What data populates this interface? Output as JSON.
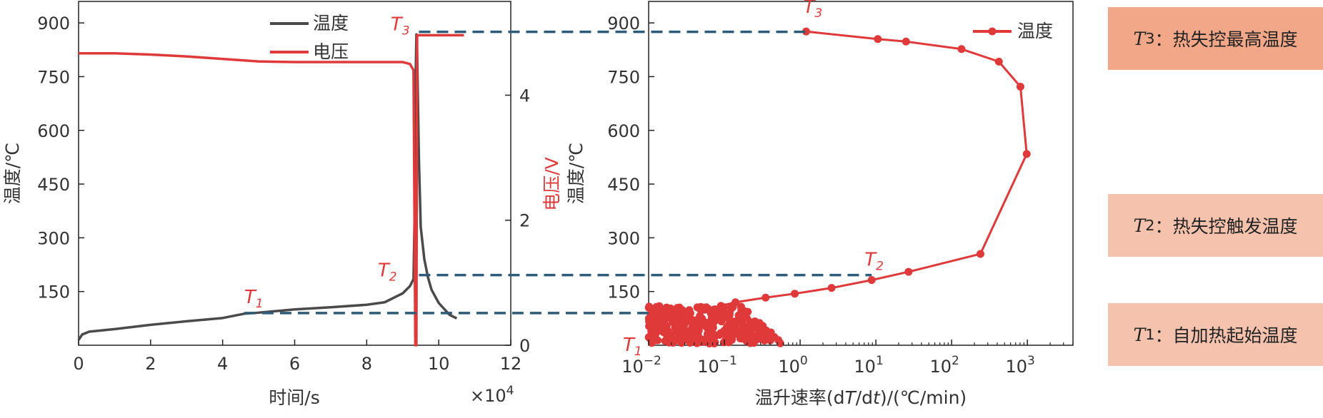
{
  "colors": {
    "temperature": "#4a4a4a",
    "voltage": "#e0393a",
    "rate": "#e0393a",
    "guide": "#2d5b7a",
    "box_t3": "#f2a888",
    "box_t2": "#f4c2ad",
    "box_t1": "#f4c2ad"
  },
  "chart_data": [
    {
      "type": "line",
      "xlabel": "时间/s",
      "x_multiplier": "×10",
      "x_multiplier_exp": "4",
      "ylabel": "温度/℃",
      "y2label": "电压/V",
      "xlim": [
        0,
        12
      ],
      "ylim": [
        0,
        960
      ],
      "y2lim": [
        0,
        5.5
      ],
      "xticks": [
        "0",
        "2",
        "4",
        "6",
        "8",
        "10",
        "12"
      ],
      "yticks": [
        "150",
        "300",
        "450",
        "600",
        "750",
        "900"
      ],
      "y2ticks": [
        "0",
        "2",
        "4"
      ],
      "legend_position": "top-center",
      "series": [
        {
          "name": "温度",
          "axis": "left",
          "x": [
            0,
            0.1,
            0.3,
            1,
            2,
            3,
            4,
            4.6,
            5,
            6,
            7,
            8,
            8.5,
            9,
            9.2,
            9.3,
            9.33,
            9.36,
            9.38,
            9.4,
            9.42,
            9.45,
            9.5,
            9.6,
            9.7,
            9.8,
            10,
            10.3,
            10.5
          ],
          "values": [
            15,
            30,
            38,
            45,
            57,
            67,
            76,
            88,
            91,
            100,
            106,
            113,
            120,
            145,
            165,
            185,
            360,
            750,
            868,
            820,
            700,
            520,
            330,
            240,
            190,
            155,
            118,
            85,
            75
          ]
        },
        {
          "name": "电压",
          "axis": "right",
          "x": [
            0,
            1,
            2,
            3,
            4,
            5,
            6,
            7,
            8,
            9,
            9.2,
            9.3,
            9.35,
            9.38,
            9.4,
            9.45,
            9.8,
            10.7
          ],
          "values": [
            4.67,
            4.67,
            4.65,
            4.62,
            4.58,
            4.54,
            4.53,
            4.53,
            4.53,
            4.53,
            4.5,
            4.4,
            0,
            0,
            4.96,
            4.96,
            4.96,
            4.96
          ]
        }
      ],
      "annotations": [
        {
          "label": "T",
          "sub": "1",
          "x": 4.6,
          "y": 90
        },
        {
          "label": "T",
          "sub": "2",
          "x": 9.3,
          "y": 196
        },
        {
          "label": "T",
          "sub": "3",
          "x": 9.38,
          "y": 875
        }
      ]
    },
    {
      "type": "scatter",
      "xlabel": "温升速率(d T/d t)/(℃/min)",
      "ylabel": "温度/℃",
      "xscale": "log",
      "xlim": [
        0.01,
        4000
      ],
      "ylim": [
        0,
        960
      ],
      "xticks": [
        {
          "base": "10",
          "exp": "−2",
          "value": 0.01
        },
        {
          "base": "10",
          "exp": "−1",
          "value": 0.1
        },
        {
          "base": "10",
          "exp": "0",
          "value": 1
        },
        {
          "base": "10",
          "exp": "1",
          "value": 10
        },
        {
          "base": "10",
          "exp": "2",
          "value": 100
        },
        {
          "base": "10",
          "exp": "3",
          "value": 1000
        }
      ],
      "yticks": [
        "150",
        "300",
        "450",
        "600",
        "750",
        "900"
      ],
      "legend_position": "top-right",
      "series": [
        {
          "name": "温度",
          "x": [
            1.2,
            10.6,
            25,
            135,
            420,
            810,
            980,
            240,
            27,
            8.8,
            2.6,
            0.85,
            0.35,
            0.14,
            0.09
          ],
          "values": [
            876,
            855,
            848,
            827,
            792,
            722,
            534,
            255,
            205,
            182,
            160,
            144,
            133,
            120,
            110
          ]
        }
      ],
      "cluster": {
        "x_range": [
          0.01,
          0.6
        ],
        "y_range": [
          5,
          110
        ]
      },
      "annotations": [
        {
          "label": "T",
          "sub": "1",
          "x": 0.01,
          "y": 40
        },
        {
          "label": "T",
          "sub": "2",
          "x": 8.8,
          "y": 210
        },
        {
          "label": "T",
          "sub": "3",
          "x": 1.2,
          "y": 900
        }
      ]
    }
  ],
  "boxes": [
    {
      "key": "t3",
      "sym": "T",
      "sub": "3",
      "text": "：热失控最高温度"
    },
    {
      "key": "t2",
      "sym": "T",
      "sub": "2",
      "text": "：热失控触发温度"
    },
    {
      "key": "t1",
      "sym": "T",
      "sub": "1",
      "text": "：自加热起始温度"
    }
  ]
}
